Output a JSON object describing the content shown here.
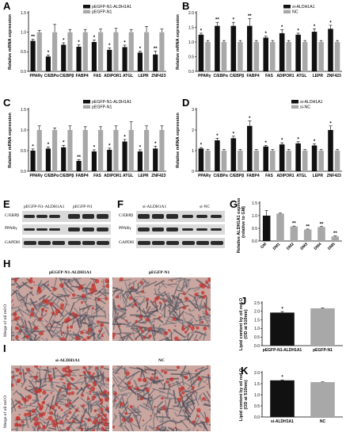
{
  "panels": {
    "A": {
      "label": "A"
    },
    "B": {
      "label": "B"
    },
    "C": {
      "label": "C"
    },
    "D": {
      "label": "D"
    },
    "E": {
      "label": "E"
    },
    "F": {
      "label": "F"
    },
    "G": {
      "label": "G"
    },
    "H": {
      "label": "H"
    },
    "I": {
      "label": "I"
    },
    "J": {
      "label": "J"
    },
    "K": {
      "label": "K"
    }
  },
  "blots": {
    "E": {
      "col1": "pEGFP-N1-ALDH1A1",
      "col2": "pEGFP-N1",
      "rows": [
        "C/EBPβ",
        "PPARγ",
        "GAPDH"
      ]
    },
    "F": {
      "col1": "si-ALDH1A1",
      "col2": "si-NC",
      "rows": [
        "C/EBPβ",
        "PPARγ",
        "GAPDH"
      ]
    }
  },
  "micro": {
    "H": {
      "left": "pEGFP-N1-ALDH1A1",
      "right": "pEGFP-N1",
      "side": "Merge of oil red O"
    },
    "I": {
      "left": "si-ALDH1A1",
      "right": "NC",
      "side": "Merge of oil red O"
    }
  },
  "colors": {
    "black": "#111111",
    "gray": "#a8a8a8",
    "stain_red": "#c4302b"
  },
  "chart_data": [
    {
      "id": "A",
      "type": "bar",
      "categories": [
        "PPARγ",
        "C/EBPα",
        "C/EBPβ",
        "FABP4",
        "FAS",
        "ADIPOR1",
        "ATGL",
        "LEPR",
        "ZNF423"
      ],
      "series": [
        {
          "name": "pEGFP-N1-ALDH1A1",
          "values": [
            0.78,
            0.38,
            0.68,
            0.63,
            0.75,
            0.55,
            0.62,
            0.48,
            0.43
          ],
          "errors": [
            0.04,
            0.04,
            0.05,
            0.05,
            0.05,
            0.05,
            0.05,
            0.04,
            0.09
          ]
        },
        {
          "name": "pEGFP-N1",
          "values": [
            1.0,
            1.0,
            1.0,
            1.0,
            1.0,
            1.0,
            1.0,
            1.0,
            1.0
          ],
          "errors": [
            0.05,
            0.2,
            0.07,
            0.07,
            0.08,
            0.1,
            0.07,
            0.15,
            0.08
          ]
        }
      ],
      "marks": [
        "**",
        "*",
        "*",
        "*",
        "*",
        "*",
        "*",
        "*",
        "**"
      ],
      "xlabel": "",
      "ylabel": "Relative mRNA expression",
      "ylim": [
        0,
        1.5
      ],
      "yticks": [
        "0.0",
        "0.5",
        "1.0",
        "1.5"
      ],
      "legend": "top-right"
    },
    {
      "id": "B",
      "type": "bar",
      "categories": [
        "PPARγ",
        "C/EBPα",
        "C/EBPβ",
        "FABP4",
        "FAS",
        "ADIPOR1",
        "ATGL",
        "LEPR",
        "ZNF423"
      ],
      "series": [
        {
          "name": "si-ALDH1A1",
          "values": [
            1.25,
            1.55,
            1.55,
            1.55,
            1.15,
            1.3,
            1.25,
            1.35,
            1.45
          ],
          "errors": [
            0.05,
            0.12,
            0.12,
            0.25,
            0.05,
            0.12,
            0.05,
            0.1,
            0.12
          ]
        },
        {
          "name": "NC",
          "values": [
            1.0,
            1.0,
            1.0,
            1.0,
            1.0,
            1.0,
            1.0,
            1.0,
            1.0
          ],
          "errors": [
            0.05,
            0.05,
            0.05,
            0.05,
            0.05,
            0.05,
            0.05,
            0.05,
            0.05
          ]
        }
      ],
      "marks": [
        "*",
        "**",
        "*",
        "**",
        "*",
        "*",
        "*",
        "*",
        "*"
      ],
      "xlabel": "",
      "ylabel": "Relative mRNA expression",
      "ylim": [
        0,
        2.0
      ],
      "yticks": [
        "0.0",
        "0.5",
        "1.0",
        "1.5",
        "2.0"
      ],
      "legend": "top-right"
    },
    {
      "id": "C",
      "type": "bar",
      "categories": [
        "PPARγ",
        "C/EBPα",
        "C/EBPβ",
        "FABP4",
        "FAS",
        "ADIPOR1",
        "ATGL",
        "LEPR",
        "ZNF423"
      ],
      "series": [
        {
          "name": "pEGFP-N1-ALDH1A1",
          "values": [
            0.5,
            0.55,
            0.58,
            0.25,
            0.48,
            0.52,
            0.72,
            0.48,
            0.55
          ],
          "errors": [
            0.04,
            0.04,
            0.05,
            0.03,
            0.04,
            0.04,
            0.05,
            0.04,
            0.06
          ]
        },
        {
          "name": "pEGFP-N1",
          "values": [
            1.0,
            1.0,
            1.0,
            1.0,
            1.0,
            1.0,
            1.0,
            1.0,
            1.0
          ],
          "errors": [
            0.1,
            0.05,
            0.1,
            0.08,
            0.08,
            0.1,
            0.2,
            0.1,
            0.1
          ]
        }
      ],
      "marks": [
        "*",
        "*",
        "*",
        "**",
        "*",
        "*",
        "*",
        "*",
        "*"
      ],
      "xlabel": "",
      "ylabel": "Relative mRNA expression",
      "ylim": [
        0,
        1.5
      ],
      "yticks": [
        "0.0",
        "0.5",
        "1.0",
        "1.5"
      ],
      "legend": "top-right"
    },
    {
      "id": "D",
      "type": "bar",
      "categories": [
        "PPARγ",
        "C/EBPα",
        "C/EBPβ",
        "FABP4",
        "FAS",
        "ADIPOR1",
        "ATGL",
        "LEPR",
        "ZNF423"
      ],
      "series": [
        {
          "name": "si-ALDH1A1",
          "values": [
            1.1,
            1.5,
            1.6,
            2.2,
            1.2,
            1.3,
            1.35,
            1.25,
            2.0
          ],
          "errors": [
            0.05,
            0.1,
            0.1,
            0.25,
            0.05,
            0.08,
            0.08,
            0.08,
            0.2
          ]
        },
        {
          "name": "si-NC",
          "values": [
            1.0,
            1.0,
            1.0,
            1.0,
            1.0,
            1.0,
            1.0,
            1.0,
            1.0
          ],
          "errors": [
            0.05,
            0.05,
            0.05,
            0.05,
            0.05,
            0.05,
            0.05,
            0.05,
            0.05
          ]
        }
      ],
      "marks": [
        "*",
        "*",
        "*",
        "*",
        "*",
        "*",
        "*",
        "*",
        "*"
      ],
      "xlabel": "",
      "ylabel": "Relative mRNA expression",
      "ylim": [
        0,
        3
      ],
      "yticks": [
        "0",
        "1",
        "2",
        "3"
      ],
      "legend": "top-right"
    },
    {
      "id": "G",
      "type": "bar",
      "categories": [
        "GM",
        "DM1",
        "DM2",
        "DM3",
        "DM4",
        "DM5"
      ],
      "series": [
        {
          "name": "",
          "values": [
            1.0,
            1.08,
            0.57,
            0.45,
            0.55,
            0.18
          ],
          "errors": [
            0.2,
            0.02,
            0.02,
            0.02,
            0.02,
            0.02
          ],
          "colors": [
            "#111111",
            "#a8a8a8",
            "#a8a8a8",
            "#a8a8a8",
            "#a8a8a8",
            "#a8a8a8"
          ]
        }
      ],
      "marks": [
        "",
        "",
        "**",
        "**",
        "**",
        "**"
      ],
      "xlabel": "",
      "ylabel": "Relative ALDH1A1 expression (relative to GM)",
      "ylim": [
        0,
        1.5
      ],
      "yticks": [
        "0.0",
        "0.5",
        "1.0",
        "1.5"
      ]
    },
    {
      "id": "J",
      "type": "bar",
      "categories": [
        "pEGFP-N1-ALDH1A1",
        "pEGFP-N1"
      ],
      "series": [
        {
          "name": "",
          "values": [
            1.93,
            2.18
          ],
          "errors": [
            0.06,
            0.02
          ],
          "colors": [
            "#111111",
            "#a8a8a8"
          ]
        }
      ],
      "marks": [
        "*",
        ""
      ],
      "xlabel": "",
      "ylabel": "Lipid content by oil red O (OD at 510nm)",
      "ylim": [
        0,
        2.5
      ],
      "yticks": [
        "0.0",
        "0.5",
        "1.0",
        "1.5",
        "2.0",
        "2.5"
      ]
    },
    {
      "id": "K",
      "type": "bar",
      "categories": [
        "si-ALDH1A1",
        "NC"
      ],
      "series": [
        {
          "name": "",
          "values": [
            1.65,
            1.57
          ],
          "errors": [
            0.02,
            0.01
          ],
          "colors": [
            "#111111",
            "#a8a8a8"
          ]
        }
      ],
      "marks": [
        "*",
        ""
      ],
      "xlabel": "",
      "ylabel": "Lipid content by oil red O (OD at 510nm)",
      "ylim": [
        0,
        2.0
      ],
      "yticks": [
        "0.0",
        "0.5",
        "1.0",
        "1.5",
        "2.0"
      ]
    }
  ]
}
